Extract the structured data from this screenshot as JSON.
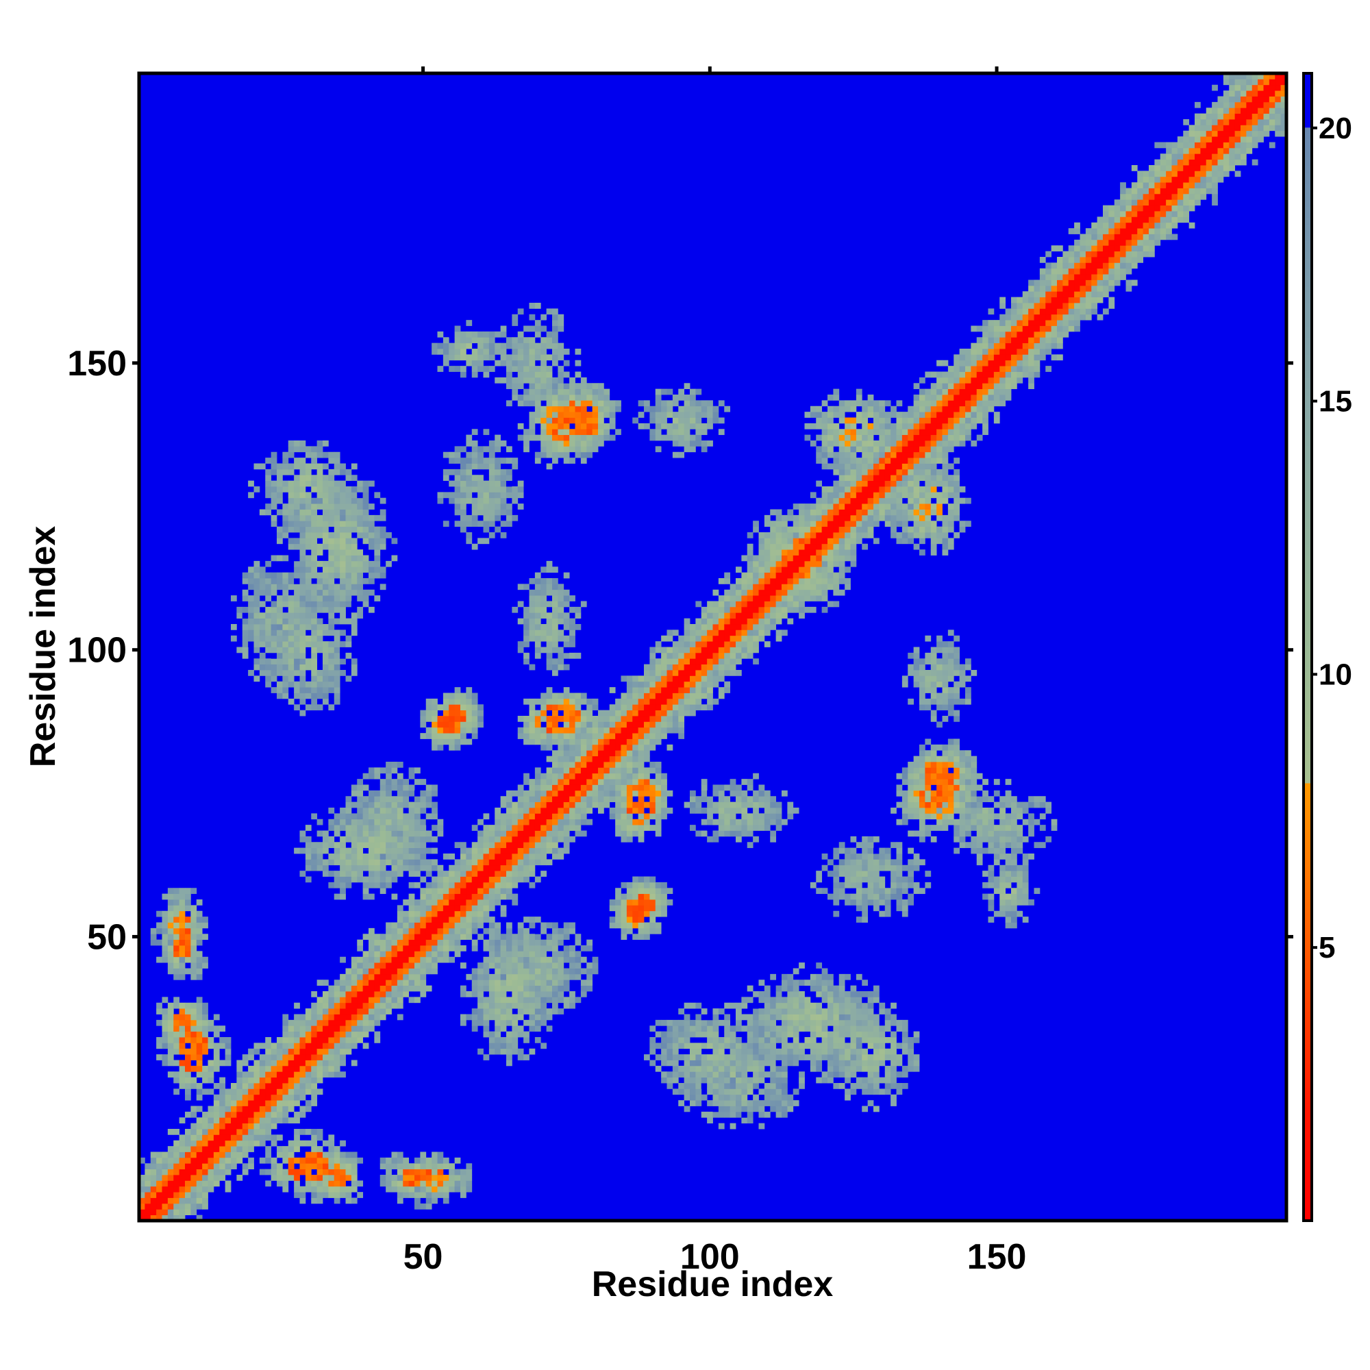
{
  "chart_data": {
    "type": "heatmap",
    "title": "",
    "xlabel": "Residue index",
    "ylabel": "Residue index",
    "n_residues": 200,
    "xlim": [
      1,
      200
    ],
    "ylim": [
      1,
      200
    ],
    "x_ticks": [
      50,
      100,
      150
    ],
    "y_ticks": [
      50,
      100,
      150
    ],
    "colorbar": {
      "min": 0,
      "max": 21,
      "ticks": [
        5,
        10,
        15,
        20
      ],
      "stops": [
        {
          "value": 0,
          "color": "#ff0000"
        },
        {
          "value": 2,
          "color": "#ff1500"
        },
        {
          "value": 5,
          "color": "#ff5a00"
        },
        {
          "value": 8,
          "color": "#ff9900"
        },
        {
          "value": 8.01,
          "color": "#a8c090"
        },
        {
          "value": 11,
          "color": "#98b898"
        },
        {
          "value": 15,
          "color": "#88a8a8"
        },
        {
          "value": 20,
          "color": "#6888b0"
        },
        {
          "value": 20.01,
          "color": "#0000ee"
        },
        {
          "value": 21,
          "color": "#0000ee"
        }
      ]
    },
    "background_color": "#0000ee",
    "grid": false,
    "description_of_values": "distance map",
    "diagonal_band": {
      "core": 1.5,
      "orange": 3.5,
      "green": 7.0
    },
    "contact_regions": [
      {
        "x": 75,
        "y": 140,
        "w": 14,
        "h": 12,
        "rot": -0.785,
        "level": 7
      },
      {
        "x": 58,
        "y": 152,
        "w": 10,
        "h": 8,
        "rot": 0,
        "level": 11
      },
      {
        "x": 140,
        "y": 78,
        "w": 12,
        "h": 10,
        "rot": -0.785,
        "level": 7
      },
      {
        "x": 150,
        "y": 70,
        "w": 16,
        "h": 12,
        "rot": 0,
        "level": 12
      },
      {
        "x": 118,
        "y": 35,
        "w": 22,
        "h": 16,
        "rot": 0,
        "level": 11
      },
      {
        "x": 100,
        "y": 30,
        "w": 18,
        "h": 14,
        "rot": 0,
        "level": 12
      },
      {
        "x": 30,
        "y": 128,
        "w": 16,
        "h": 14,
        "rot": 0,
        "level": 11
      },
      {
        "x": 25,
        "y": 105,
        "w": 14,
        "h": 18,
        "rot": 0,
        "level": 12
      },
      {
        "x": 8,
        "y": 50,
        "w": 8,
        "h": 14,
        "rot": 0,
        "level": 8
      },
      {
        "x": 8,
        "y": 35,
        "w": 8,
        "h": 8,
        "rot": 0,
        "level": 7
      },
      {
        "x": 30,
        "y": 10,
        "w": 14,
        "h": 10,
        "rot": 0,
        "level": 8
      },
      {
        "x": 52,
        "y": 8,
        "w": 10,
        "h": 6,
        "rot": 0,
        "level": 9
      },
      {
        "x": 55,
        "y": 88,
        "w": 10,
        "h": 8,
        "rot": -0.785,
        "level": 7
      },
      {
        "x": 75,
        "y": 88,
        "w": 10,
        "h": 8,
        "rot": -0.785,
        "level": 7
      },
      {
        "x": 88,
        "y": 72,
        "w": 10,
        "h": 8,
        "rot": -0.785,
        "level": 7
      },
      {
        "x": 88,
        "y": 55,
        "w": 10,
        "h": 8,
        "rot": -0.785,
        "level": 7
      },
      {
        "x": 115,
        "y": 118,
        "w": 14,
        "h": 12,
        "rot": 0,
        "level": 9
      },
      {
        "x": 125,
        "y": 138,
        "w": 14,
        "h": 12,
        "rot": 0,
        "level": 9
      },
      {
        "x": 72,
        "y": 105,
        "w": 10,
        "h": 16,
        "rot": 0,
        "level": 12
      },
      {
        "x": 40,
        "y": 65,
        "w": 20,
        "h": 14,
        "rot": 0,
        "level": 11
      },
      {
        "x": 70,
        "y": 45,
        "w": 16,
        "h": 14,
        "rot": 0,
        "level": 12
      },
      {
        "x": 95,
        "y": 140,
        "w": 14,
        "h": 10,
        "rot": 0,
        "level": 12
      },
      {
        "x": 128,
        "y": 60,
        "w": 16,
        "h": 12,
        "rot": 0,
        "level": 13
      }
    ]
  }
}
